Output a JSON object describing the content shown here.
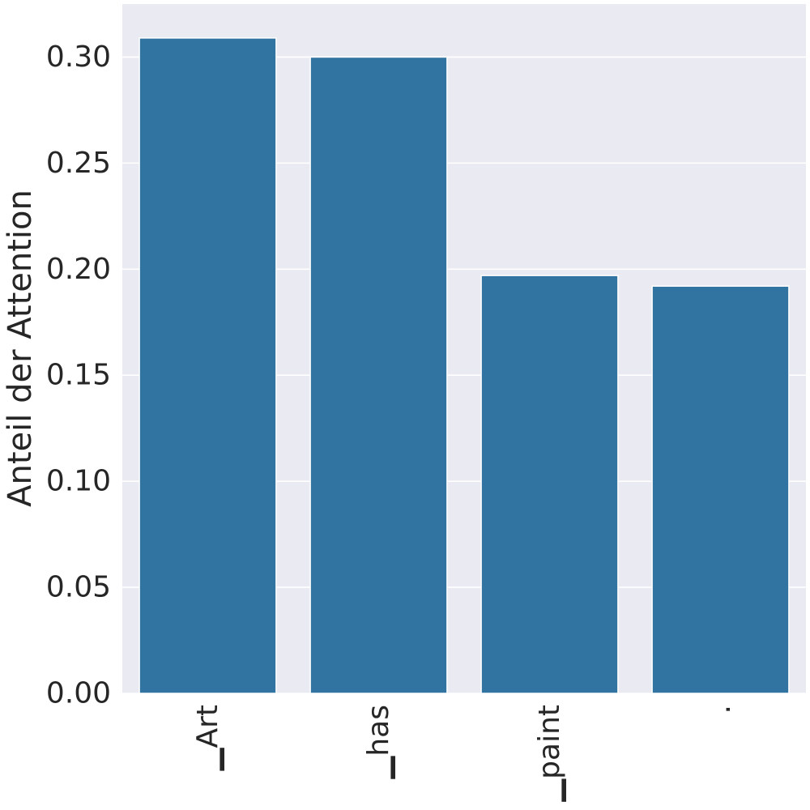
{
  "chart_data": {
    "type": "bar",
    "title": "",
    "xlabel": "",
    "ylabel": "Anteil der Attention",
    "categories": [
      "▁Art",
      "▁has",
      "▁paint",
      "."
    ],
    "values": [
      0.309,
      0.3,
      0.197,
      0.192
    ],
    "ylim": [
      0,
      0.325
    ],
    "yticks": [
      0.0,
      0.05,
      0.1,
      0.15,
      0.2,
      0.25,
      0.3
    ],
    "ytick_labels": [
      "0.00",
      "0.05",
      "0.10",
      "0.15",
      "0.20",
      "0.25",
      "0.30"
    ],
    "grid": true,
    "legend": null
  },
  "colors": {
    "bar": "#3274a1",
    "background": "#eaeaf2",
    "grid": "#ffffff",
    "text": "#262626"
  }
}
